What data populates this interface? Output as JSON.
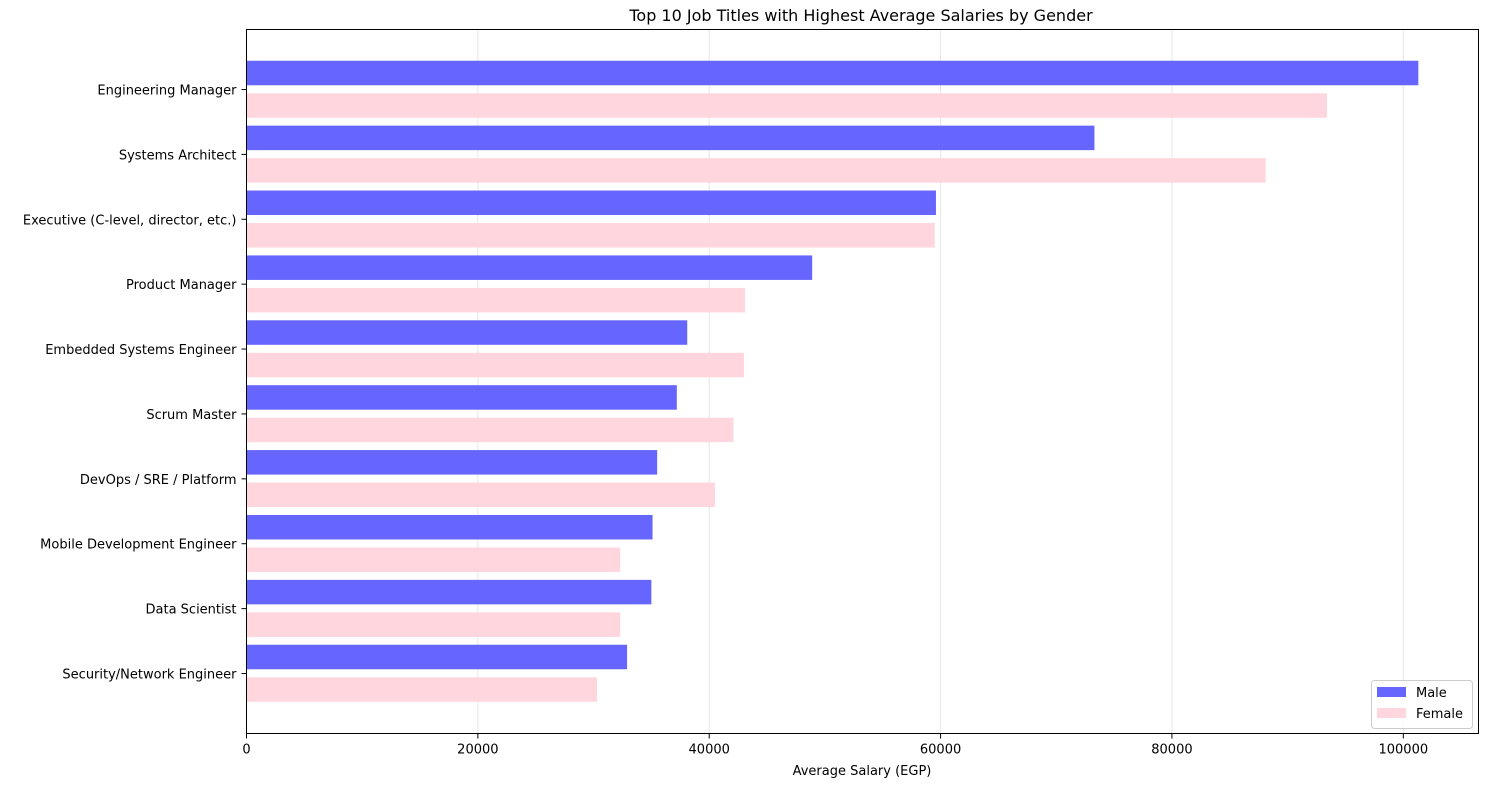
{
  "chart_data": {
    "type": "bar",
    "orientation": "horizontal",
    "title": "Top 10 Job Titles with Highest Average Salaries by Gender",
    "xlabel": "Average Salary (EGP)",
    "ylabel": "",
    "xlim": [
      0,
      106500
    ],
    "xticks": [
      0,
      20000,
      40000,
      60000,
      80000,
      100000
    ],
    "xtick_labels": [
      "0",
      "20000",
      "40000",
      "60000",
      "80000",
      "100000"
    ],
    "grid": "x-axis only",
    "legend_position": "lower-right",
    "categories": [
      "Engineering Manager",
      "Systems Architect",
      "Executive (C-level, director, etc.)",
      "Product Manager",
      "Embedded Systems Engineer",
      "Scrum Master",
      "DevOps / SRE / Platform",
      "Mobile Development Engineer",
      "Data Scientist",
      "Security/Network Engineer"
    ],
    "series": [
      {
        "name": "Male",
        "color": "#6666ff",
        "values": [
          101300,
          73300,
          59600,
          48900,
          38100,
          37200,
          35500,
          35100,
          35000,
          32900
        ]
      },
      {
        "name": "Female",
        "color": "#ffd6de",
        "values": [
          93400,
          88100,
          59500,
          43100,
          43000,
          42100,
          40500,
          32300,
          32300,
          30300
        ]
      }
    ]
  }
}
